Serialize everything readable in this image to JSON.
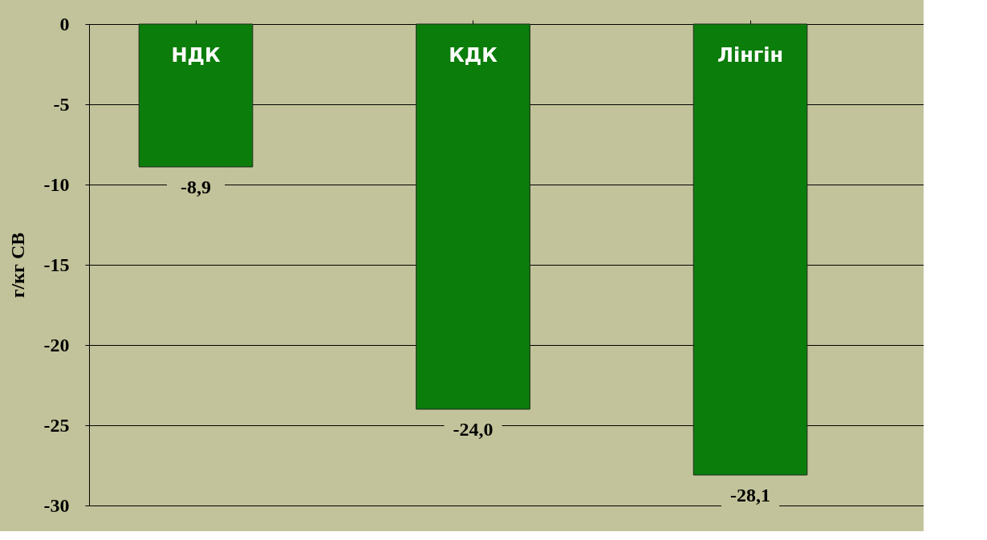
{
  "chart_data": {
    "type": "bar",
    "ylabel": "г/кг СВ",
    "categories": [
      "НДК",
      "КДК",
      "Лінгін"
    ],
    "values": [
      -8.9,
      -24.0,
      -28.1
    ],
    "value_labels": [
      "-8,9",
      "-24,0",
      "-28,1"
    ],
    "color": "#0b7d0b",
    "ylim": [
      -30,
      0
    ],
    "yticks": [
      0,
      -5,
      -10,
      -15,
      -20,
      -25,
      -30
    ],
    "grid": "y",
    "tick_labels": "y"
  }
}
